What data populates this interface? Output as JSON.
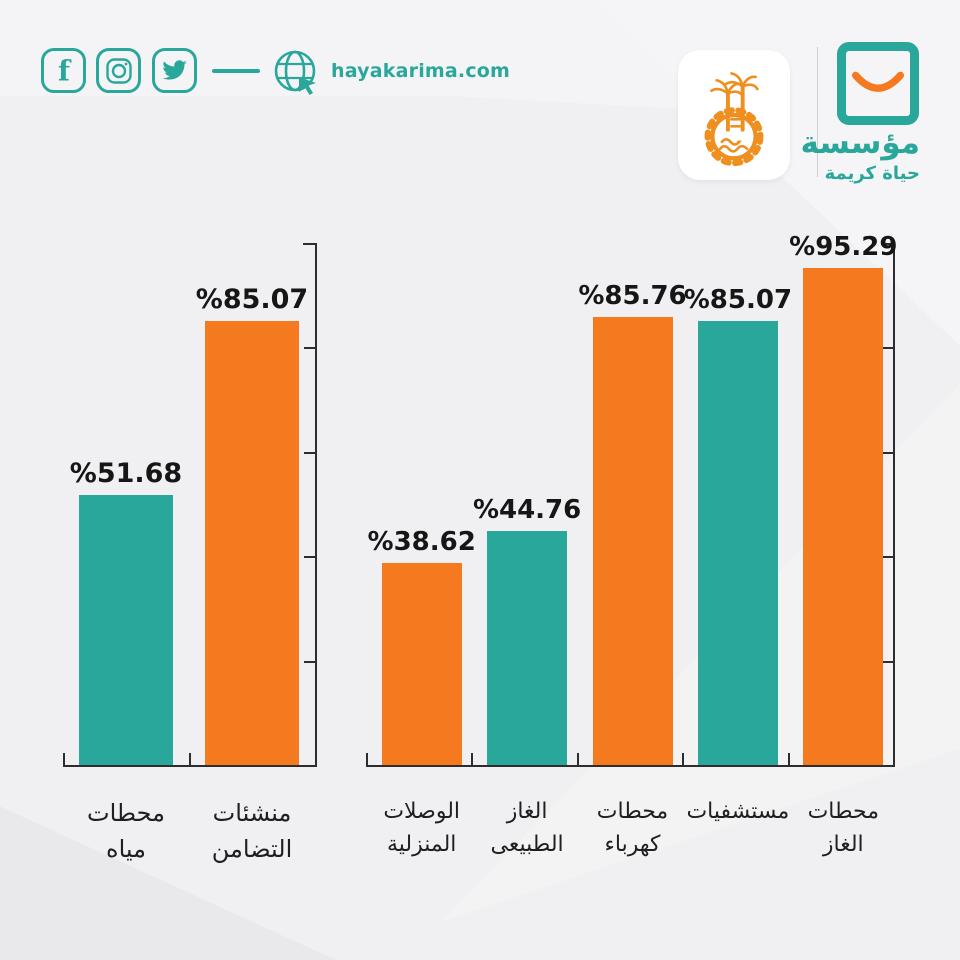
{
  "header": {
    "website": "hayakarima.com",
    "social_icons": [
      "facebook",
      "instagram",
      "twitter"
    ],
    "accent_color": "#2aa79b"
  },
  "branding": {
    "emblem_icon": "governorate-palms-gear-emblem",
    "smile_icon": "haya-karima-smile",
    "foundation_name_line1": "مؤسسة",
    "foundation_name_line2": "حياة كريمة",
    "emblem_color": "#ee8f1f",
    "teal": "#2aa79b",
    "orange": "#f5791f"
  },
  "chart_data": [
    {
      "type": "bar",
      "title": "",
      "categories": [
        "محطات مياه",
        "منشئات التضامن"
      ],
      "category_lines": [
        [
          "محطات",
          "مياه"
        ],
        [
          "منشئات",
          "التضامن"
        ]
      ],
      "values": [
        51.68,
        85.07
      ],
      "value_labels": [
        "%51.68",
        "%85.07"
      ],
      "bar_colors": [
        "#2aa79b",
        "#f5791f"
      ],
      "xlabel": "",
      "ylabel": "",
      "ylim": [
        0,
        100
      ],
      "ticks_percent": [
        0,
        20,
        40,
        60,
        80,
        100
      ],
      "axis_side": "right",
      "grid": false
    },
    {
      "type": "bar",
      "title": "",
      "categories": [
        "الوصلات المنزلية",
        "الغاز الطبيعى",
        "محطات كهرباء",
        "مستشفيات",
        "محطات الغاز"
      ],
      "category_lines": [
        [
          "الوصلات",
          "المنزلية"
        ],
        [
          "الغاز",
          "الطبيعى"
        ],
        [
          "محطات",
          "كهرباء"
        ],
        [
          "مستشفيات"
        ],
        [
          "محطات",
          "الغاز"
        ]
      ],
      "values": [
        38.62,
        44.76,
        85.76,
        85.07,
        95.29
      ],
      "value_labels": [
        "%38.62",
        "%44.76",
        "%85.76",
        "%85.07",
        "%95.29"
      ],
      "bar_colors": [
        "#f5791f",
        "#2aa79b",
        "#f5791f",
        "#2aa79b",
        "#f5791f"
      ],
      "xlabel": "",
      "ylabel": "",
      "ylim": [
        0,
        100
      ],
      "ticks_percent": [
        0,
        20,
        40,
        60,
        80,
        100
      ],
      "axis_side": "right",
      "grid": false
    }
  ]
}
